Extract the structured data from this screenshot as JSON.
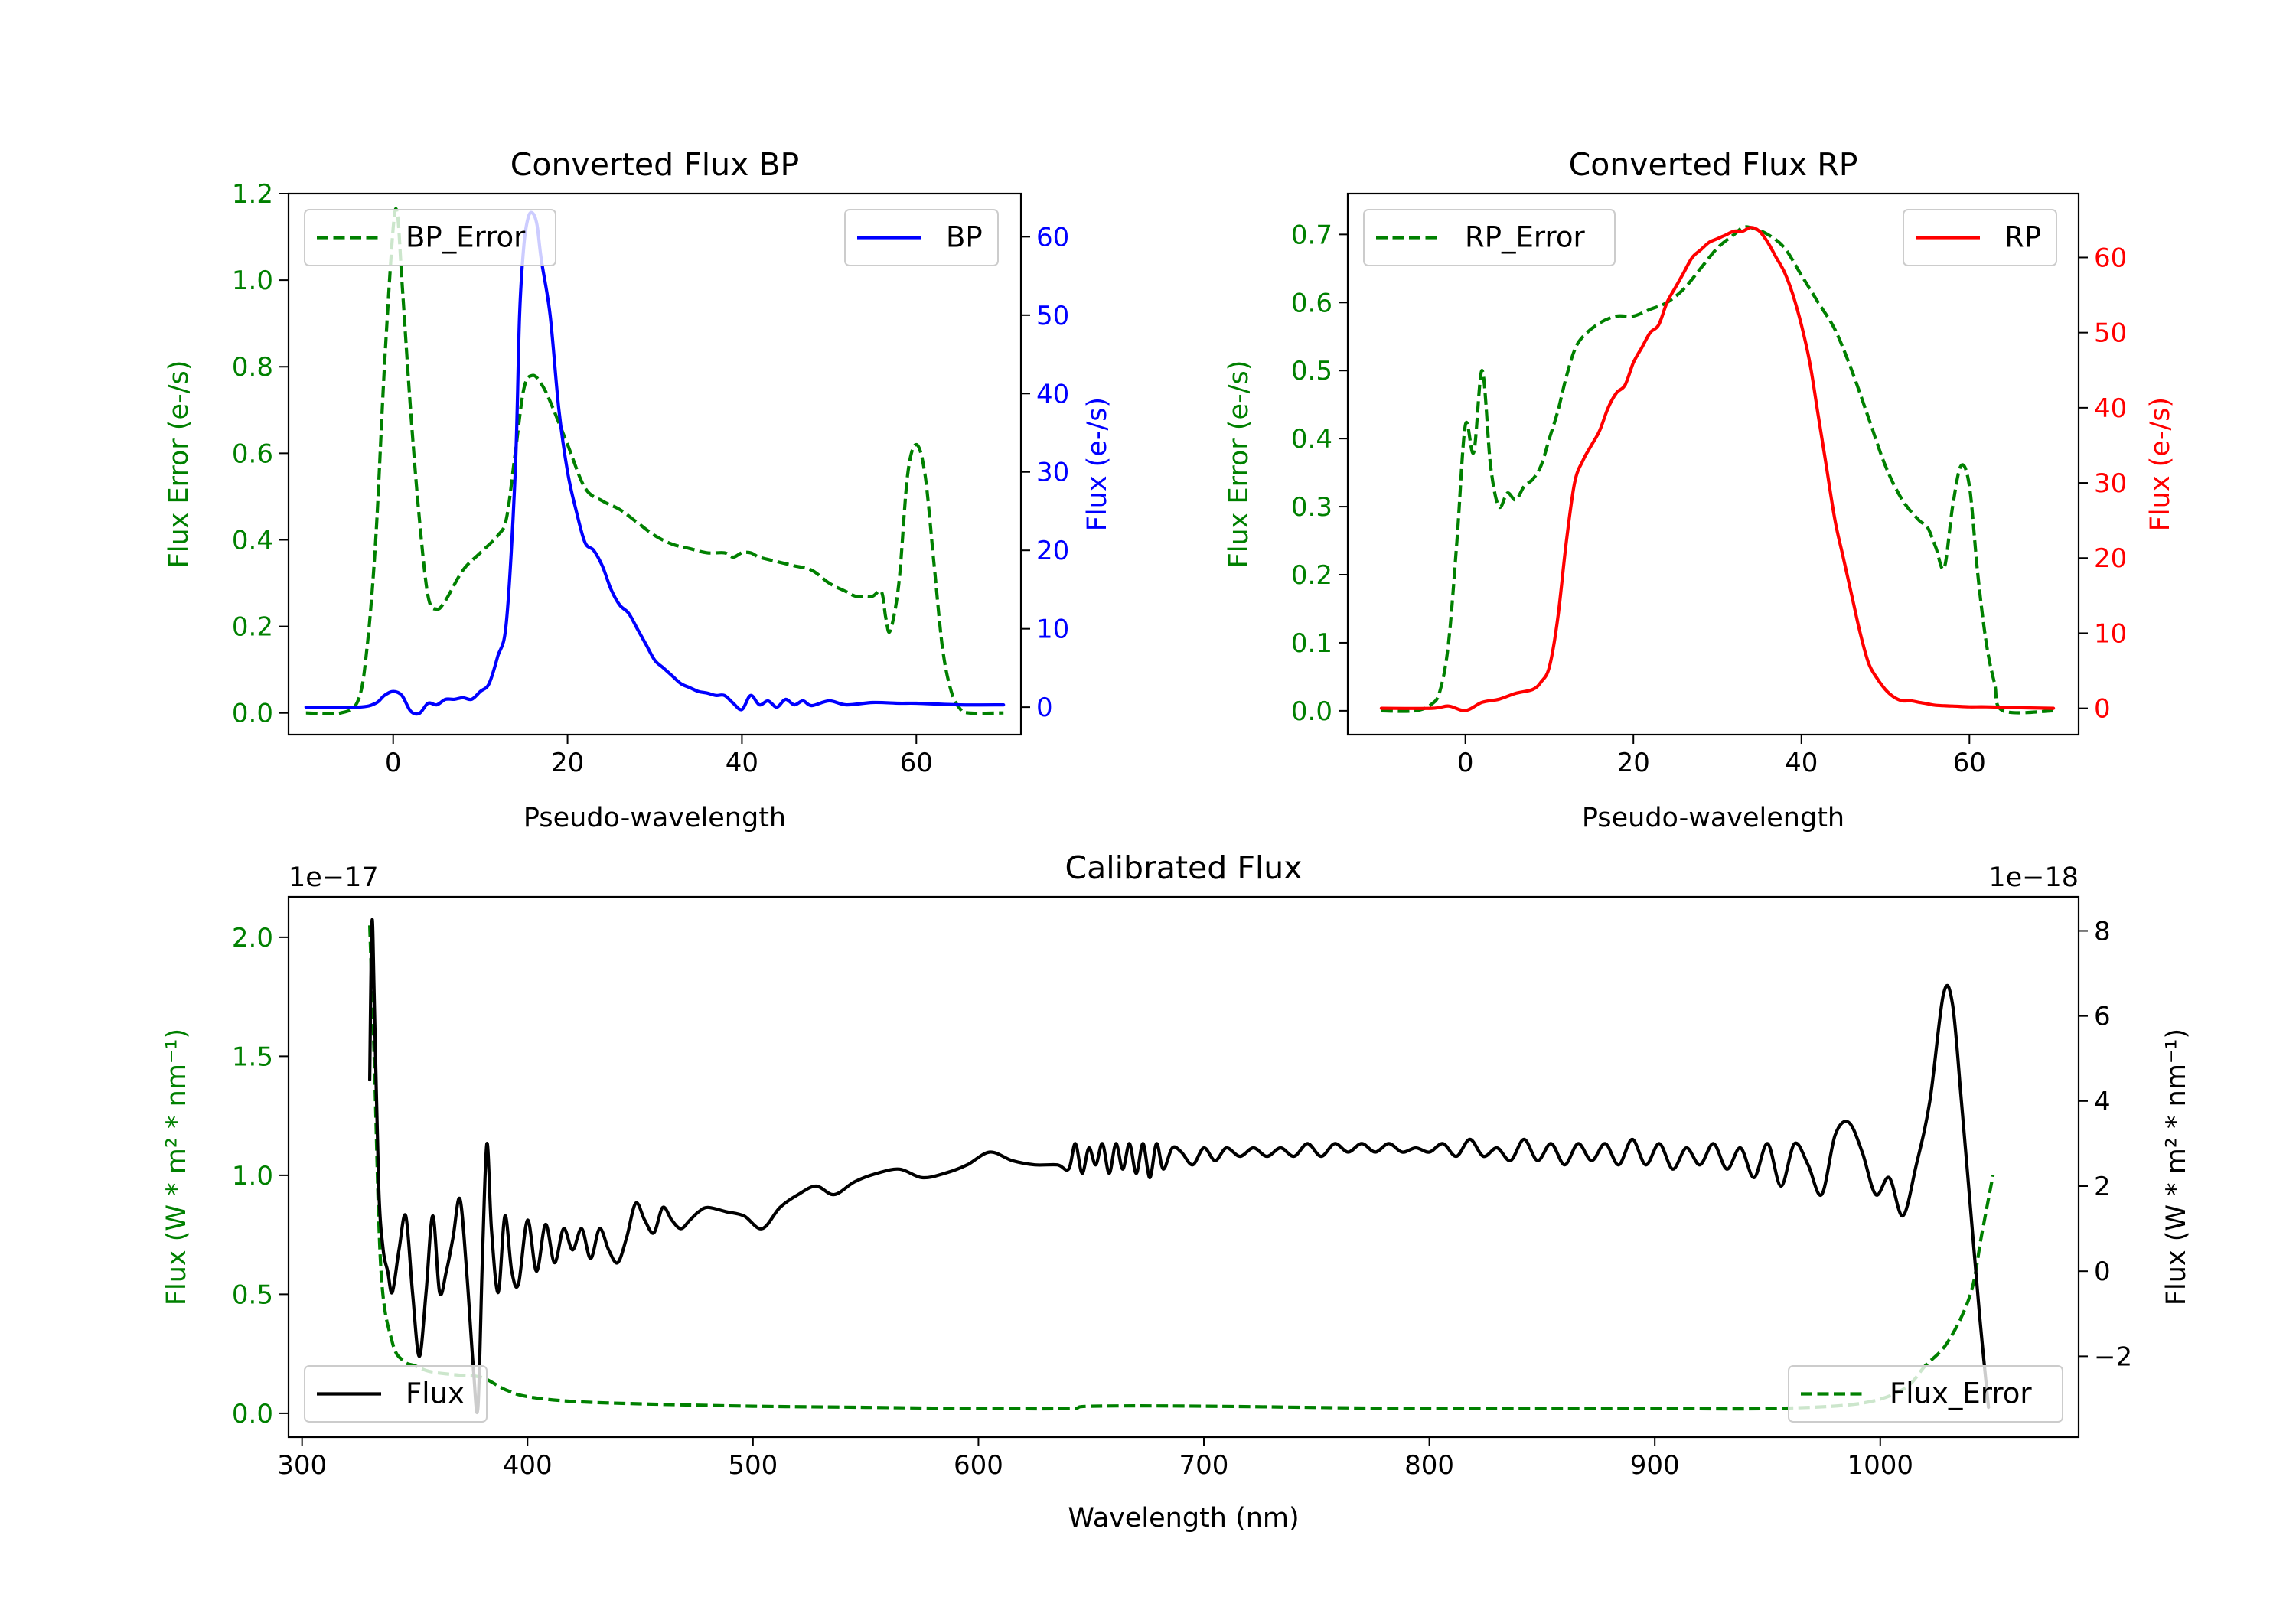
{
  "chart_data": [
    {
      "id": "bp",
      "type": "line",
      "title": "Converted Flux BP",
      "xlabel": "Pseudo-wavelength",
      "ylabel_left": "Flux Error (e-/s)",
      "ylabel_right": "Flux (e-/s)",
      "xlim": [
        -12,
        72
      ],
      "ylim_left": [
        -0.05,
        1.2
      ],
      "ylim_right": [
        -3.5,
        65.5
      ],
      "xticks": [
        0,
        20,
        40,
        60
      ],
      "xtick_labels": [
        "0",
        "20",
        "40",
        "60"
      ],
      "yticks_left": [
        0.0,
        0.2,
        0.4,
        0.6,
        0.8,
        1.0,
        1.2
      ],
      "ytick_labels_left": [
        "0.0",
        "0.2",
        "0.4",
        "0.6",
        "0.8",
        "1.0",
        "1.2"
      ],
      "yticks_right": [
        0,
        10,
        20,
        30,
        40,
        50,
        60
      ],
      "ytick_labels_right": [
        "0",
        "10",
        "20",
        "30",
        "40",
        "50",
        "60"
      ],
      "left_color": "#008000",
      "right_color": "#0000ff",
      "legend_left": {
        "label": "BP_Error",
        "placement": "upper-left"
      },
      "legend_right": {
        "label": "BP",
        "placement": "upper-right"
      },
      "series": [
        {
          "name": "BP_Error",
          "axis": "left",
          "style": "dashed",
          "color": "#008000",
          "x": [
            -10,
            -6,
            -4,
            -3,
            -2,
            -1,
            0,
            0.5,
            1,
            2,
            3,
            4,
            5,
            6,
            8,
            10,
            12,
            13,
            14,
            15,
            16,
            17,
            18,
            20,
            22,
            24,
            26,
            28,
            30,
            32,
            34,
            36,
            38,
            39,
            40,
            41,
            42,
            44,
            46,
            48,
            50,
            52,
            53,
            54,
            55,
            56,
            56.5,
            57,
            58,
            59,
            60,
            61,
            62,
            63,
            64,
            65,
            66,
            70
          ],
          "y": [
            0.0,
            0.0,
            0.03,
            0.15,
            0.4,
            0.8,
            1.12,
            1.15,
            1.0,
            0.7,
            0.45,
            0.27,
            0.24,
            0.26,
            0.33,
            0.37,
            0.41,
            0.45,
            0.6,
            0.75,
            0.78,
            0.76,
            0.72,
            0.62,
            0.52,
            0.49,
            0.47,
            0.44,
            0.41,
            0.39,
            0.38,
            0.37,
            0.37,
            0.36,
            0.37,
            0.37,
            0.36,
            0.35,
            0.34,
            0.33,
            0.3,
            0.28,
            0.27,
            0.27,
            0.27,
            0.28,
            0.22,
            0.19,
            0.3,
            0.55,
            0.62,
            0.55,
            0.35,
            0.15,
            0.05,
            0.01,
            0.0,
            0.0
          ]
        },
        {
          "name": "BP",
          "axis": "right",
          "style": "solid",
          "color": "#0000ff",
          "x": [
            -10,
            -4,
            -2,
            -1,
            0,
            1,
            2,
            3,
            4,
            5,
            6,
            7,
            8,
            9,
            10,
            11,
            12,
            13,
            14,
            14.5,
            15,
            15.5,
            16,
            16.5,
            17,
            18,
            19,
            20,
            21,
            22,
            23,
            24,
            25,
            26,
            27,
            28,
            29,
            30,
            31,
            32,
            33,
            34,
            35,
            36,
            37,
            38,
            39,
            40,
            41,
            42,
            43,
            44,
            45,
            46,
            47,
            48,
            50,
            52,
            55,
            58,
            60,
            65,
            70
          ],
          "y": [
            0,
            0,
            0.5,
            1.5,
            2,
            1.5,
            -0.5,
            -0.8,
            0.5,
            0.3,
            1.0,
            1.0,
            1.2,
            1.0,
            2.0,
            3.0,
            6.5,
            11,
            30,
            50,
            59,
            62.5,
            63,
            61.5,
            57,
            50,
            38,
            30,
            25,
            21,
            20,
            18,
            15,
            13,
            12,
            10,
            8,
            6,
            5,
            4,
            3,
            2.5,
            2,
            1.8,
            1.5,
            1.5,
            0.5,
            -0.3,
            1.5,
            0.3,
            0.8,
            0.0,
            1.0,
            0.3,
            0.8,
            0.2,
            0.8,
            0.3,
            0.6,
            0.5,
            0.5,
            0.3,
            0.3
          ]
        }
      ]
    },
    {
      "id": "rp",
      "type": "line",
      "title": "Converted Flux RP",
      "xlabel": "Pseudo-wavelength",
      "ylabel_left": "Flux Error (e-/s)",
      "ylabel_right": "Flux (e-/s)",
      "xlim": [
        -14,
        73
      ],
      "ylim_left": [
        -0.035,
        0.76
      ],
      "ylim_right": [
        -3.5,
        68.5
      ],
      "xticks": [
        0,
        20,
        40,
        60
      ],
      "xtick_labels": [
        "0",
        "20",
        "40",
        "60"
      ],
      "yticks_left": [
        0.0,
        0.1,
        0.2,
        0.3,
        0.4,
        0.5,
        0.6,
        0.7
      ],
      "ytick_labels_left": [
        "0.0",
        "0.1",
        "0.2",
        "0.3",
        "0.4",
        "0.5",
        "0.6",
        "0.7"
      ],
      "yticks_right": [
        0,
        10,
        20,
        30,
        40,
        50,
        60
      ],
      "ytick_labels_right": [
        "0",
        "10",
        "20",
        "30",
        "40",
        "50",
        "60"
      ],
      "left_color": "#008000",
      "right_color": "#ff0000",
      "legend_left": {
        "label": "RP_Error",
        "placement": "upper-left"
      },
      "legend_right": {
        "label": "RP",
        "placement": "upper-right"
      },
      "series": [
        {
          "name": "RP_Error",
          "axis": "left",
          "style": "dashed",
          "color": "#008000",
          "x": [
            -10,
            -6,
            -4,
            -3,
            -2,
            -1,
            0,
            1,
            2,
            3,
            4,
            5,
            6,
            7,
            8,
            9,
            10,
            11,
            12,
            13,
            14,
            16,
            18,
            20,
            22,
            24,
            26,
            28,
            30,
            32,
            33,
            34,
            36,
            38,
            40,
            42,
            44,
            46,
            48,
            50,
            52,
            54,
            55,
            56,
            57,
            58,
            59,
            60,
            61,
            62,
            63,
            64,
            70
          ],
          "y": [
            0.0,
            0.0,
            0.01,
            0.03,
            0.1,
            0.25,
            0.42,
            0.38,
            0.5,
            0.36,
            0.3,
            0.32,
            0.31,
            0.33,
            0.34,
            0.36,
            0.4,
            0.44,
            0.49,
            0.53,
            0.55,
            0.57,
            0.58,
            0.58,
            0.59,
            0.6,
            0.62,
            0.65,
            0.68,
            0.7,
            0.71,
            0.71,
            0.7,
            0.68,
            0.64,
            0.6,
            0.56,
            0.5,
            0.43,
            0.36,
            0.31,
            0.28,
            0.27,
            0.24,
            0.21,
            0.3,
            0.36,
            0.33,
            0.2,
            0.1,
            0.04,
            0.0,
            0.0
          ]
        },
        {
          "name": "RP",
          "axis": "right",
          "style": "solid",
          "color": "#ff0000",
          "x": [
            -10,
            -4,
            -2,
            0,
            2,
            4,
            6,
            8,
            9,
            10,
            11,
            12,
            13,
            14,
            15,
            16,
            17,
            18,
            19,
            20,
            21,
            22,
            23,
            24,
            25,
            26,
            27,
            28,
            29,
            30,
            31,
            32,
            33,
            34,
            35,
            36,
            37,
            38,
            39,
            40,
            41,
            42,
            43,
            44,
            45,
            46,
            47,
            48,
            49,
            50,
            51,
            52,
            53,
            54,
            55,
            56,
            58,
            60,
            62,
            65,
            70
          ],
          "y": [
            0,
            0,
            0.3,
            -0.3,
            0.8,
            1.2,
            2.0,
            2.5,
            3.5,
            5.5,
            12,
            22,
            30,
            33,
            35,
            37,
            40,
            42,
            43,
            46,
            48,
            50,
            51,
            54,
            56,
            58,
            60,
            61,
            62,
            62.5,
            63,
            63.5,
            63.5,
            64,
            63.5,
            62,
            60,
            58,
            55,
            51,
            46,
            39,
            32,
            25,
            20,
            15,
            10,
            6,
            4,
            2.5,
            1.5,
            1,
            1,
            0.8,
            0.6,
            0.4,
            0.3,
            0.2,
            0.2,
            0.1,
            0
          ]
        }
      ]
    },
    {
      "id": "cal",
      "type": "line",
      "title": "Calibrated Flux",
      "xlabel": "Wavelength (nm)",
      "ylabel_left": "Flux (W * m² * nm⁻¹)",
      "ylabel_right": "Flux (W * m² * nm⁻¹)",
      "offset_left": "1e−17",
      "offset_right": "1e−18",
      "xlim": [
        294,
        1088
      ],
      "ylim_left": [
        -0.1,
        2.17
      ],
      "ylim_right": [
        -3.9,
        8.8
      ],
      "xticks": [
        300,
        400,
        500,
        600,
        700,
        800,
        900,
        1000
      ],
      "xtick_labels": [
        "300",
        "400",
        "500",
        "600",
        "700",
        "800",
        "900",
        "1000"
      ],
      "yticks_left": [
        0.0,
        0.5,
        1.0,
        1.5,
        2.0
      ],
      "ytick_labels_left": [
        "0.0",
        "0.5",
        "1.0",
        "1.5",
        "2.0"
      ],
      "yticks_right": [
        -2,
        0,
        2,
        4,
        6,
        8
      ],
      "ytick_labels_right": [
        "−2",
        "0",
        "2",
        "4",
        "6",
        "8"
      ],
      "left_color": "#008000",
      "right_color": "#000000",
      "legend_left": {
        "label": "Flux",
        "placement": "lower-left"
      },
      "legend_right": {
        "label": "Flux_Error",
        "placement": "lower-right"
      },
      "series": [
        {
          "name": "Flux_Error",
          "axis": "left",
          "style": "dashed",
          "color": "#008000",
          "x": [
            330,
            332,
            335,
            340,
            345,
            350,
            355,
            360,
            370,
            380,
            390,
            400,
            420,
            450,
            500,
            550,
            600,
            640,
            650,
            700,
            800,
            900,
            950,
            990,
            1010,
            1020,
            1030,
            1040,
            1045,
            1050
          ],
          "y": [
            2.05,
            1.5,
            0.6,
            0.3,
            0.22,
            0.2,
            0.18,
            0.17,
            0.16,
            0.15,
            0.1,
            0.07,
            0.05,
            0.04,
            0.03,
            0.025,
            0.02,
            0.02,
            0.03,
            0.03,
            0.02,
            0.02,
            0.02,
            0.04,
            0.1,
            0.2,
            0.3,
            0.5,
            0.75,
            1.0
          ]
        },
        {
          "name": "Flux",
          "axis": "right",
          "style": "solid",
          "color": "#000000",
          "x": [
            330,
            331,
            332,
            334,
            336,
            338,
            340,
            343,
            346,
            349,
            352,
            355,
            358,
            361,
            364,
            367,
            370,
            373,
            376,
            378,
            380,
            382,
            384,
            387,
            390,
            393,
            396,
            400,
            404,
            408,
            412,
            416,
            420,
            424,
            428,
            432,
            436,
            440,
            444,
            448,
            452,
            456,
            460,
            464,
            468,
            472,
            476,
            480,
            488,
            496,
            504,
            512,
            520,
            528,
            536,
            545,
            555,
            565,
            575,
            585,
            595,
            605,
            615,
            625,
            635,
            640,
            643,
            646,
            649,
            652,
            655,
            658,
            661,
            664,
            667,
            670,
            673,
            676,
            679,
            682,
            686,
            690,
            695,
            700,
            705,
            710,
            716,
            722,
            728,
            734,
            740,
            746,
            752,
            758,
            764,
            770,
            776,
            782,
            788,
            794,
            800,
            806,
            812,
            818,
            824,
            830,
            836,
            842,
            848,
            854,
            860,
            866,
            872,
            878,
            884,
            890,
            896,
            902,
            908,
            914,
            920,
            926,
            932,
            938,
            944,
            950,
            956,
            962,
            968,
            974,
            980,
            986,
            992,
            998,
            1004,
            1010,
            1016,
            1022,
            1028,
            1032,
            1036,
            1040,
            1044,
            1048
          ],
          "y": [
            4.5,
            8.2,
            6.5,
            2.0,
            0.5,
            0.0,
            -0.5,
            0.5,
            1.3,
            -0.5,
            -2.0,
            -0.5,
            1.3,
            -0.5,
            0.0,
            0.8,
            1.7,
            0.0,
            -2.3,
            -3.2,
            0.3,
            3.0,
            1.0,
            -0.5,
            1.3,
            0.0,
            -0.3,
            1.2,
            0.0,
            1.1,
            0.2,
            1.0,
            0.5,
            1.0,
            0.3,
            1.0,
            0.5,
            0.2,
            0.8,
            1.6,
            1.2,
            0.9,
            1.5,
            1.2,
            1.0,
            1.2,
            1.4,
            1.5,
            1.4,
            1.3,
            1.0,
            1.5,
            1.8,
            2.0,
            1.8,
            2.1,
            2.3,
            2.4,
            2.2,
            2.3,
            2.5,
            2.8,
            2.6,
            2.5,
            2.5,
            2.4,
            3.0,
            2.3,
            2.9,
            2.5,
            3.0,
            2.3,
            3.0,
            2.4,
            3.0,
            2.3,
            3.0,
            2.2,
            3.0,
            2.4,
            2.9,
            2.8,
            2.5,
            2.9,
            2.6,
            2.9,
            2.7,
            2.9,
            2.7,
            2.9,
            2.7,
            3.0,
            2.7,
            3.0,
            2.8,
            3.0,
            2.8,
            3.0,
            2.8,
            2.9,
            2.8,
            3.0,
            2.7,
            3.1,
            2.7,
            2.9,
            2.6,
            3.1,
            2.6,
            3.0,
            2.5,
            3.0,
            2.6,
            3.0,
            2.5,
            3.1,
            2.5,
            3.0,
            2.4,
            2.9,
            2.5,
            3.0,
            2.4,
            2.9,
            2.2,
            3.0,
            2.0,
            3.0,
            2.5,
            1.8,
            3.2,
            3.5,
            2.8,
            1.8,
            2.2,
            1.3,
            2.5,
            4.0,
            6.5,
            6.3,
            4.0,
            1.5,
            -1.0,
            -3.2
          ]
        }
      ]
    }
  ]
}
